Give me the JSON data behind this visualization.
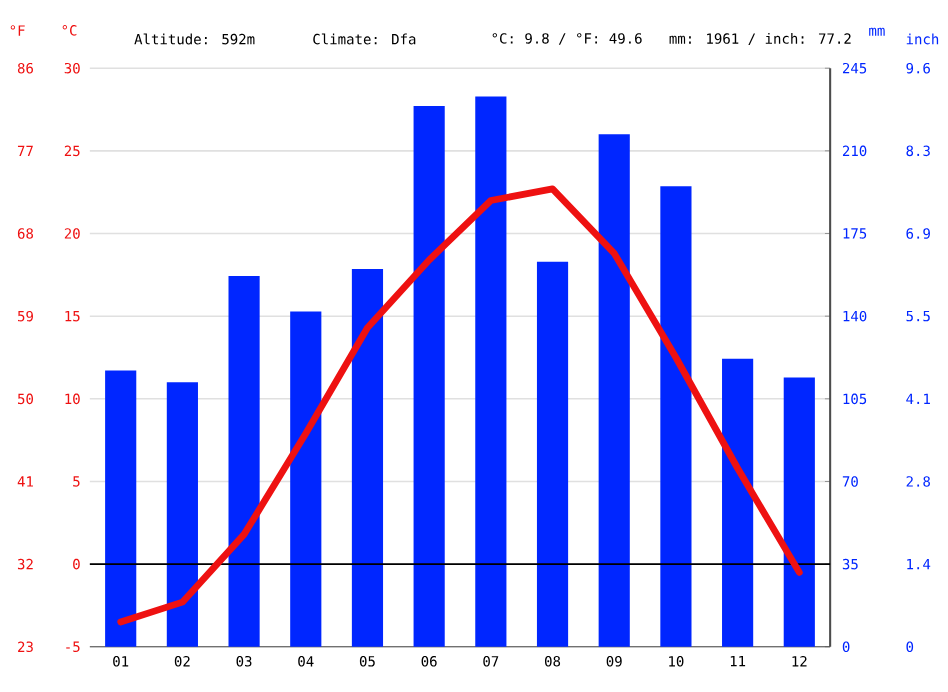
{
  "chart_data": {
    "type": "bar",
    "annotations": [
      "Altitude: 592m",
      "Climate: Dfa",
      "°C: 9.8 / °F: 49.6",
      "mm: 1961 / inch: 77.2",
      "inch",
      "0",
      "1.4",
      "2.8",
      "4.1",
      "5.5",
      "6.9",
      "8.3",
      "9.6"
    ],
    "ylabel": "°C",
    "y2label": "mm",
    "y3label": "°F",
    "categories": [
      "01",
      "02",
      "03",
      "04",
      "05",
      "06",
      "07",
      "08",
      "09",
      "10",
      "11",
      "12"
    ],
    "series": [
      {
        "axis": "y2",
        "color": "#0026ff",
        "values": [
          117,
          112,
          157,
          142,
          160,
          229,
          233,
          163,
          217,
          195,
          122,
          114
        ]
      },
      {
        "type": "line",
        "axis": "y",
        "color": "#ee1111",
        "values": [
          -3.5,
          -2.3,
          1.8,
          7.9,
          14.3,
          18.4,
          22.0,
          22.7,
          18.8,
          12.5,
          5.8,
          -0.5
        ]
      }
    ],
    "ylim": [
      -5,
      30
    ],
    "yticks": [
      -5,
      0,
      5,
      10,
      15,
      20,
      25,
      30
    ],
    "y2lim": [
      0,
      245
    ],
    "y2ticks": [
      0,
      35,
      70,
      105,
      140,
      175,
      210,
      245
    ],
    "y3lim": [
      23,
      86
    ],
    "y3ticks": [
      23,
      32,
      41,
      50,
      59,
      68,
      77,
      86
    ],
    "ref_lines": [
      {
        "axis": "y",
        "value": 0,
        "color": "#000000"
      }
    ],
    "grid": "y",
    "marker": "none",
    "line_style": "solid"
  }
}
